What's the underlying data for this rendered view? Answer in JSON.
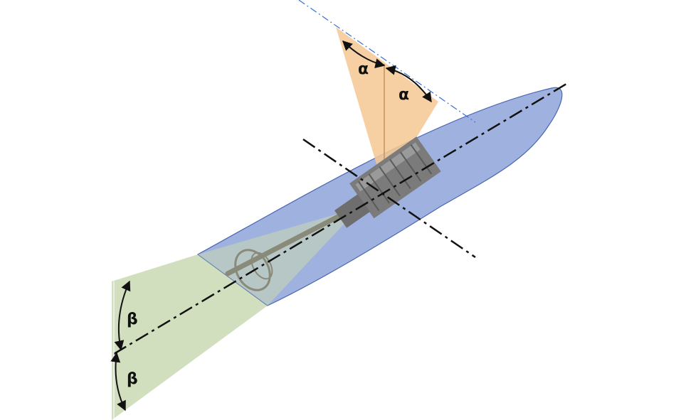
{
  "labels": {
    "alpha_left": "α",
    "alpha_right": "α",
    "beta_upper": "β",
    "beta_lower": "β"
  },
  "colors": {
    "hull_fill": "#7f97d3",
    "hull_stroke": "#4a67b5",
    "alpha_cone": "#f4c892",
    "beta_cone": "#c9d9b3",
    "centerline": "#111111",
    "reference_line": "#3a6fd0",
    "engine": "#7b7b7b"
  },
  "icons": {
    "engine": "engine-block-icon",
    "propeller": "propeller-icon"
  }
}
